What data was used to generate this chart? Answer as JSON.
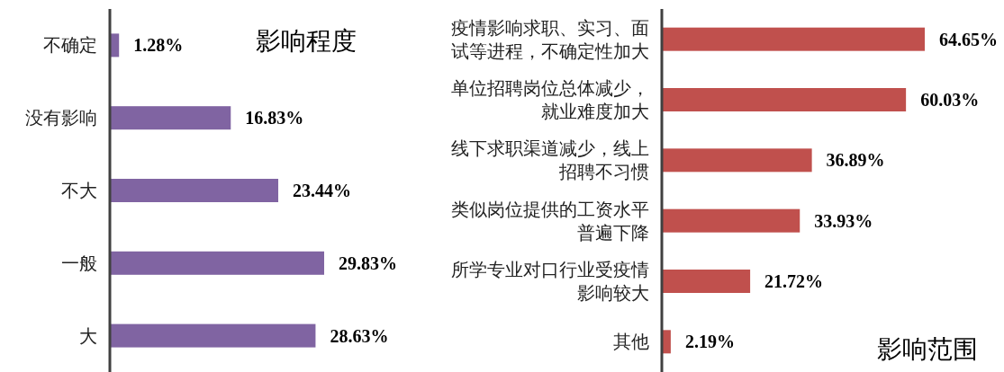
{
  "chart_data": [
    {
      "type": "bar",
      "orientation": "horizontal",
      "title": "影响程度",
      "categories": [
        "不确定",
        "没有影响",
        "不大",
        "一般",
        "大"
      ],
      "values": [
        1.28,
        16.83,
        23.44,
        29.83,
        28.63
      ],
      "color": "#8064a2",
      "data_labels": true,
      "value_labels": [
        "1.28%",
        "16.83%",
        "23.44%",
        "29.83%",
        "28.63%"
      ]
    },
    {
      "type": "bar",
      "orientation": "horizontal",
      "title": "影响范围",
      "categories": [
        "疫情影响求职、实习、面试等进程，不确定性加大",
        "单位招聘岗位总体减少，就业难度加大",
        "线下求职渠道减少，线上招聘不习惯",
        "类似岗位提供的工资水平普遍下降",
        "所学专业对口行业受疫情影响较大",
        "其他"
      ],
      "values": [
        64.65,
        60.03,
        36.89,
        33.93,
        21.72,
        2.19
      ],
      "color": "#c0504d",
      "data_labels": true,
      "value_labels": [
        "64.65%",
        "60.03%",
        "36.89%",
        "33.93%",
        "21.72%",
        "2.19%"
      ]
    }
  ]
}
